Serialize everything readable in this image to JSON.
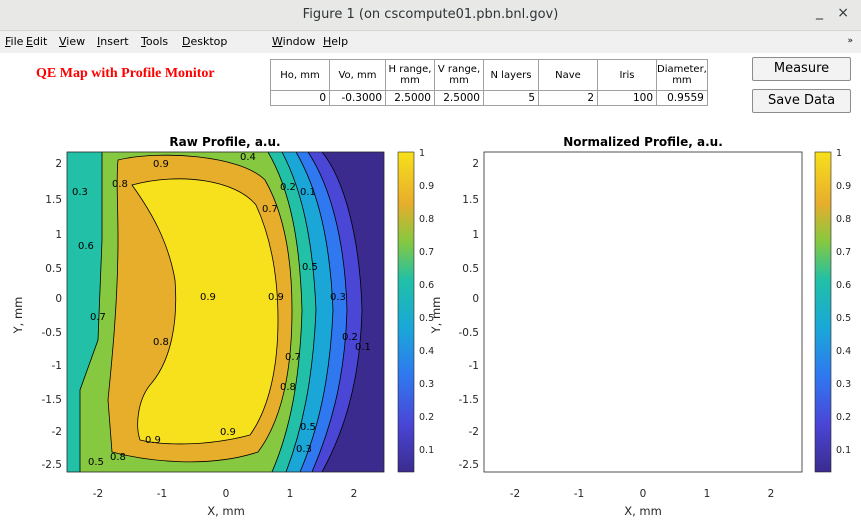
{
  "window": {
    "title": "Figure 1 (on cscompute01.pbn.bnl.gov)",
    "minimize_symbol": "_",
    "close_symbol": "×"
  },
  "menu": [
    "File",
    "Edit",
    "View",
    "Insert",
    "Tools",
    "Desktop",
    "Window",
    "Help"
  ],
  "menu_overflow": "»",
  "heading": "QE Map with Profile Monitor",
  "params": {
    "headers": [
      "Ho, mm",
      "Vo, mm",
      "H range, mm",
      "V range, mm",
      "N layers",
      "Nave",
      "Iris",
      "Diameter, mm"
    ],
    "values": [
      "0",
      "-0.3000",
      "2.5000",
      "2.5000",
      "5",
      "2",
      "100",
      "0.9559"
    ]
  },
  "buttons": {
    "measure": "Measure",
    "save": "Save Data"
  },
  "plots": [
    {
      "title": "Raw Profile, a.u."
    },
    {
      "title": "Normalized Profile, a.u."
    }
  ],
  "axes": {
    "xlabel": "X, mm",
    "ylabel": "Y, mm",
    "xticks": [
      "-2",
      "-1",
      "0",
      "1",
      "2"
    ],
    "yticks": [
      "2",
      "1.5",
      "1",
      "0.5",
      "0",
      "-0.5",
      "-1",
      "-1.5",
      "-2",
      "-2.5"
    ],
    "cticks": [
      "1",
      "0.9",
      "0.8",
      "0.7",
      "0.6",
      "0.5",
      "0.4",
      "0.3",
      "0.2",
      "0.1"
    ]
  },
  "contour_labels": [
    "0.1",
    "0.2",
    "0.3",
    "0.4",
    "0.5",
    "0.6",
    "0.7",
    "0.8",
    "0.9"
  ],
  "colors": {
    "c0": "#3b2b8f",
    "c1": "#4a46d6",
    "c2": "#2f78f0",
    "c3": "#1aa7d8",
    "c4": "#21c0a7",
    "c5": "#58c77a",
    "c6": "#86c840",
    "c7": "#e7ae2c",
    "c8": "#f5c228",
    "c9": "#f7e01c"
  }
}
